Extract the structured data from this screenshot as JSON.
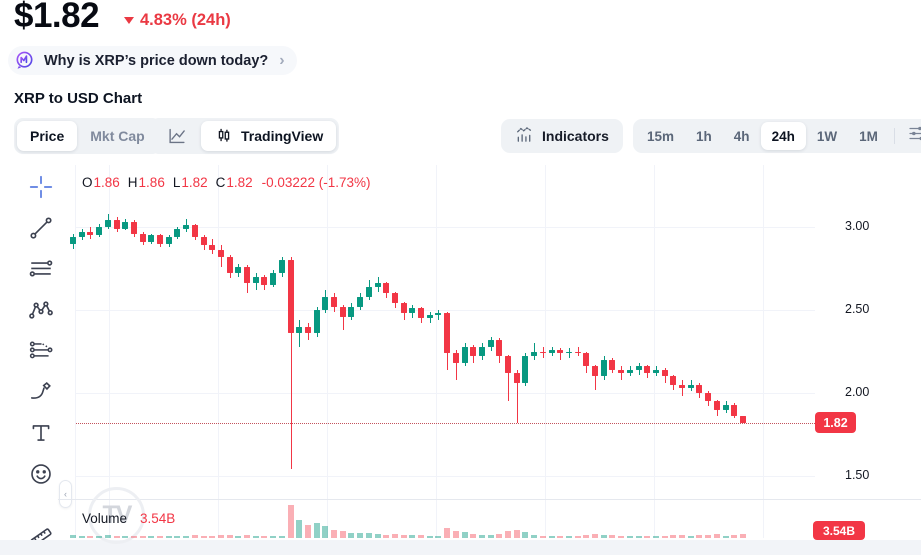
{
  "header": {
    "price": "$1.82",
    "change": "4.83% (24h)",
    "change_direction": "down",
    "banner": {
      "text": "Why is XRP’s price down today?"
    },
    "chart_title": "XRP to USD Chart"
  },
  "toolbar": {
    "metric_tabs": [
      {
        "label": "Price",
        "selected": true
      },
      {
        "label": "Mkt Cap",
        "selected": false
      }
    ],
    "view_tabs": {
      "tradingview_label": "TradingView"
    },
    "indicators_label": "Indicators",
    "timeframes": [
      {
        "label": "15m",
        "selected": false
      },
      {
        "label": "1h",
        "selected": false
      },
      {
        "label": "4h",
        "selected": false
      },
      {
        "label": "24h",
        "selected": true
      },
      {
        "label": "1W",
        "selected": false
      },
      {
        "label": "1M",
        "selected": false
      }
    ]
  },
  "chart": {
    "legend": {
      "o_label": "O",
      "o": "1.86",
      "h_label": "H",
      "h": "1.86",
      "l_label": "L",
      "l": "1.82",
      "c_label": "C",
      "c": "1.82",
      "change": "-0.03222 (-1.73%)"
    },
    "volume_label": "Volume",
    "volume_value": "3.54B",
    "price_badge": "1.82",
    "volume_badge": "3.54B",
    "watermark": "TV",
    "drawing_tools": [
      "crosshair",
      "trend-line",
      "horizontal-lines",
      "xabcd-pattern",
      "projection",
      "brush",
      "text",
      "emoji",
      "measure"
    ],
    "colors": {
      "up": "#089981",
      "down": "#f23645",
      "accent_red": "#ea3943",
      "badge": "#f23645",
      "ai_purple": "#8b5cf6"
    },
    "chart_data": {
      "type": "candlestick",
      "pair": "XRP/USD",
      "interval": "24h",
      "last_close": 1.82,
      "y_axis": {
        "tick_labels": [
          "3.00",
          "2.50",
          "2.00",
          "1.50"
        ],
        "tick_values": [
          3.0,
          2.5,
          2.0,
          1.5
        ]
      },
      "candles_format": [
        "open",
        "high",
        "low",
        "close",
        "relative_volume"
      ],
      "candles": [
        [
          2.9,
          2.96,
          2.87,
          2.94,
          8
        ],
        [
          2.94,
          2.99,
          2.92,
          2.97,
          6
        ],
        [
          2.97,
          3.0,
          2.93,
          2.95,
          5
        ],
        [
          2.95,
          3.02,
          2.94,
          3.0,
          7
        ],
        [
          3.0,
          3.08,
          2.99,
          3.04,
          9
        ],
        [
          3.04,
          3.06,
          2.97,
          2.99,
          6
        ],
        [
          2.99,
          3.05,
          2.98,
          3.03,
          5
        ],
        [
          3.03,
          3.04,
          2.94,
          2.96,
          7
        ],
        [
          2.96,
          2.97,
          2.89,
          2.91,
          6
        ],
        [
          2.91,
          2.96,
          2.9,
          2.95,
          4
        ],
        [
          2.95,
          2.96,
          2.88,
          2.9,
          5
        ],
        [
          2.9,
          2.95,
          2.88,
          2.94,
          4
        ],
        [
          2.94,
          3.0,
          2.93,
          2.99,
          6
        ],
        [
          2.99,
          3.05,
          2.97,
          3.01,
          7
        ],
        [
          3.01,
          3.02,
          2.92,
          2.94,
          8
        ],
        [
          2.94,
          2.95,
          2.86,
          2.89,
          7
        ],
        [
          2.89,
          2.93,
          2.84,
          2.86,
          6
        ],
        [
          2.86,
          2.89,
          2.76,
          2.82,
          8
        ],
        [
          2.82,
          2.83,
          2.69,
          2.72,
          10
        ],
        [
          2.72,
          2.78,
          2.7,
          2.76,
          6
        ],
        [
          2.76,
          2.77,
          2.6,
          2.66,
          8
        ],
        [
          2.66,
          2.72,
          2.62,
          2.7,
          5
        ],
        [
          2.7,
          2.71,
          2.62,
          2.65,
          5
        ],
        [
          2.65,
          2.74,
          2.64,
          2.72,
          5
        ],
        [
          2.72,
          2.82,
          2.7,
          2.8,
          7
        ],
        [
          2.8,
          2.82,
          1.54,
          2.36,
          100
        ],
        [
          2.36,
          2.44,
          2.28,
          2.4,
          55
        ],
        [
          2.4,
          2.42,
          2.32,
          2.36,
          40
        ],
        [
          2.36,
          2.52,
          2.34,
          2.5,
          45
        ],
        [
          2.5,
          2.62,
          2.48,
          2.58,
          35
        ],
        [
          2.58,
          2.6,
          2.49,
          2.52,
          25
        ],
        [
          2.52,
          2.53,
          2.38,
          2.46,
          20
        ],
        [
          2.46,
          2.54,
          2.44,
          2.52,
          15
        ],
        [
          2.52,
          2.6,
          2.5,
          2.58,
          14
        ],
        [
          2.58,
          2.68,
          2.56,
          2.64,
          16
        ],
        [
          2.64,
          2.7,
          2.61,
          2.66,
          12
        ],
        [
          2.66,
          2.67,
          2.57,
          2.6,
          10
        ],
        [
          2.6,
          2.61,
          2.51,
          2.54,
          12
        ],
        [
          2.54,
          2.55,
          2.44,
          2.48,
          10
        ],
        [
          2.48,
          2.53,
          2.45,
          2.51,
          8
        ],
        [
          2.51,
          2.52,
          2.42,
          2.45,
          9
        ],
        [
          2.45,
          2.49,
          2.42,
          2.47,
          6
        ],
        [
          2.47,
          2.5,
          2.44,
          2.48,
          5
        ],
        [
          2.48,
          2.49,
          2.14,
          2.24,
          30
        ],
        [
          2.24,
          2.26,
          2.08,
          2.18,
          22
        ],
        [
          2.18,
          2.3,
          2.16,
          2.28,
          18
        ],
        [
          2.28,
          2.29,
          2.18,
          2.22,
          12
        ],
        [
          2.22,
          2.3,
          2.2,
          2.28,
          10
        ],
        [
          2.28,
          2.34,
          2.25,
          2.32,
          9
        ],
        [
          2.32,
          2.33,
          2.18,
          2.22,
          11
        ],
        [
          2.22,
          2.23,
          1.95,
          2.12,
          20
        ],
        [
          2.12,
          2.14,
          1.82,
          2.06,
          25
        ],
        [
          2.06,
          2.24,
          2.04,
          2.22,
          18
        ],
        [
          2.22,
          2.3,
          2.2,
          2.25,
          10
        ],
        [
          2.25,
          2.28,
          2.21,
          2.24,
          7
        ],
        [
          2.24,
          2.28,
          2.22,
          2.26,
          5
        ],
        [
          2.26,
          2.27,
          2.2,
          2.24,
          6
        ],
        [
          2.24,
          2.27,
          2.21,
          2.25,
          4
        ],
        [
          2.25,
          2.28,
          2.22,
          2.24,
          4
        ],
        [
          2.24,
          2.25,
          2.12,
          2.16,
          9
        ],
        [
          2.16,
          2.17,
          2.02,
          2.1,
          12
        ],
        [
          2.1,
          2.22,
          2.08,
          2.2,
          10
        ],
        [
          2.2,
          2.21,
          2.12,
          2.14,
          8
        ],
        [
          2.14,
          2.16,
          2.08,
          2.12,
          6
        ],
        [
          2.12,
          2.16,
          2.1,
          2.14,
          4
        ],
        [
          2.14,
          2.18,
          2.11,
          2.16,
          5
        ],
        [
          2.16,
          2.17,
          2.09,
          2.12,
          6
        ],
        [
          2.12,
          2.16,
          2.1,
          2.14,
          4
        ],
        [
          2.14,
          2.15,
          2.06,
          2.1,
          7
        ],
        [
          2.1,
          2.11,
          2.02,
          2.05,
          8
        ],
        [
          2.05,
          2.08,
          1.98,
          2.03,
          9
        ],
        [
          2.03,
          2.08,
          2.01,
          2.05,
          5
        ],
        [
          2.05,
          2.06,
          1.97,
          2.0,
          8
        ],
        [
          2.0,
          2.01,
          1.92,
          1.95,
          10
        ],
        [
          1.95,
          1.96,
          1.86,
          1.9,
          12
        ],
        [
          1.9,
          1.95,
          1.88,
          1.93,
          7
        ],
        [
          1.93,
          1.94,
          1.85,
          1.86,
          9
        ],
        [
          1.86,
          1.86,
          1.82,
          1.82,
          11
        ]
      ]
    }
  }
}
